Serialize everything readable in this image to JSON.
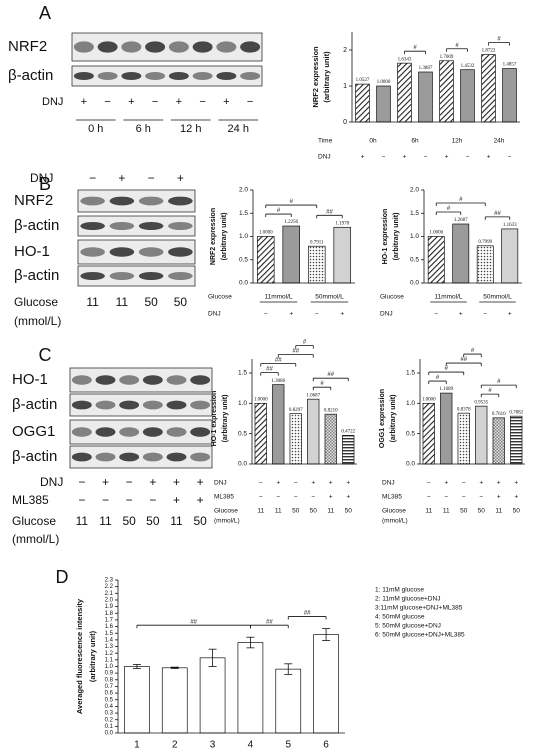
{
  "panels": [
    {
      "label": "A",
      "bands": [
        "NRF2",
        "β-actin"
      ],
      "lane_rows": [
        {
          "name": "DNJ",
          "labels": [
            "+",
            "−",
            "+",
            "−",
            "+",
            "−",
            "+",
            "−"
          ]
        }
      ],
      "groups": [
        "0 h",
        "6 h",
        "12 h",
        "24 h"
      ]
    },
    {
      "label": "B",
      "bands": [
        "NRF2",
        "β-actin",
        "HO-1",
        "β-actin"
      ],
      "lane_rows": [
        {
          "name": "DNJ",
          "labels": [
            "−",
            "+",
            "−",
            "+"
          ]
        },
        {
          "name": "Glucose",
          "unit": "(mmol/L)",
          "labels": [
            "11",
            "11",
            "50",
            "50"
          ]
        }
      ]
    },
    {
      "label": "C",
      "bands": [
        "HO-1",
        "β-actin",
        "OGG1",
        "β-actin"
      ],
      "lane_rows": [
        {
          "name": "DNJ",
          "labels": [
            "−",
            "+",
            "−",
            "+",
            "+",
            "+"
          ]
        },
        {
          "name": "ML385",
          "labels": [
            "−",
            "−",
            "−",
            "−",
            "+",
            "+"
          ]
        },
        {
          "name": "Glucose",
          "unit": "(mmol/L)",
          "labels": [
            "11",
            "11",
            "50",
            "50",
            "11",
            "50"
          ]
        }
      ]
    },
    {
      "label": "D"
    }
  ],
  "chart_data": [
    {
      "type": "bar",
      "ylabel": [
        "NRF2 expression",
        "(arbitrary unit)"
      ],
      "values": [
        1.0527,
        1.0,
        1.6343,
        1.3887,
        1.7009,
        1.4532,
        1.8722,
        1.4857
      ],
      "value_labels": [
        "1.0527",
        "1.0000",
        "1.6343",
        "1.3887",
        "1.7009",
        "1.4532",
        "1.8722",
        "1.4857"
      ],
      "ylim": [
        0,
        2.5
      ],
      "yticks": [
        0,
        1,
        2
      ],
      "bar_styles": [
        "hatch",
        "gray",
        "hatch",
        "gray",
        "hatch",
        "gray",
        "hatch",
        "gray"
      ],
      "groups": {
        "name": "Time",
        "labels": [
          "0h",
          "6h",
          "12h",
          "24h"
        ]
      },
      "rows": [
        {
          "name": "DNJ",
          "labels": [
            "+",
            "−",
            "+",
            "−",
            "+",
            "−",
            "+",
            "−"
          ]
        }
      ],
      "comparisons": [
        {
          "label": "#",
          "bars": [
            2,
            3
          ]
        },
        {
          "label": "#",
          "bars": [
            4,
            5
          ]
        },
        {
          "label": "#",
          "bars": [
            6,
            7
          ]
        }
      ]
    },
    {
      "type": "bar",
      "ylabel": [
        "NRF2 expression",
        "(arbitrary unit)"
      ],
      "values": [
        1.0,
        1.225,
        0.7911,
        1.1978
      ],
      "value_labels": [
        "1.0000",
        "1.2250",
        "0.7911",
        "1.1978"
      ],
      "ylim": [
        0,
        2
      ],
      "yticks": [
        {
          "value": 0,
          "label": "0.0"
        },
        0.5,
        {
          "value": 1,
          "label": "1.0"
        },
        1.5,
        {
          "value": 2,
          "label": "2.0"
        }
      ],
      "bar_styles": [
        "hatch",
        "gray",
        "dots",
        "light"
      ],
      "groups": {
        "name": "Glucose",
        "labels": [
          "11mmol/L",
          "50mmol/L"
        ]
      },
      "rows": [
        {
          "name": "DNJ",
          "labels": [
            "−",
            "+",
            "−",
            "+"
          ]
        }
      ],
      "comparisons": [
        {
          "label": "#",
          "bars": [
            0,
            1
          ]
        },
        {
          "label": "#",
          "bars": [
            0,
            2
          ]
        },
        {
          "label": "##",
          "bars": [
            2,
            3
          ]
        }
      ]
    },
    {
      "type": "bar",
      "ylabel": [
        "HO-1 expression",
        "(arbitrary unit)"
      ],
      "values": [
        1.0,
        1.2687,
        0.7999,
        1.1633
      ],
      "value_labels": [
        "1.0000",
        "1.2687",
        "0.7999",
        "1.1633"
      ],
      "ylim": [
        0,
        2
      ],
      "yticks": [
        {
          "value": 0,
          "label": "0.0"
        },
        0.5,
        {
          "value": 1,
          "label": "1.0"
        },
        1.5,
        {
          "value": 2,
          "label": "2.0"
        }
      ],
      "bar_styles": [
        "hatch",
        "gray",
        "dots",
        "light"
      ],
      "groups": {
        "name": "Glucose",
        "labels": [
          "11mmol/L",
          "50mmol/L"
        ]
      },
      "rows": [
        {
          "name": "DNJ",
          "labels": [
            "−",
            "+",
            "−",
            "+"
          ]
        }
      ],
      "comparisons": [
        {
          "label": "#",
          "bars": [
            0,
            1
          ]
        },
        {
          "label": "#",
          "bars": [
            0,
            2
          ]
        },
        {
          "label": "##",
          "bars": [
            2,
            3
          ]
        }
      ]
    },
    {
      "type": "bar",
      "ylabel": [
        "HO-1 expression",
        "(arbitrary unit)"
      ],
      "values": [
        1.0,
        1.3086,
        0.8297,
        1.0687,
        0.821,
        0.4722
      ],
      "value_labels": [
        "1.0000",
        "1.3086",
        "0.8297",
        "1.0687",
        "0.8210",
        "0.4722"
      ],
      "ylim": [
        0,
        1.5
      ],
      "yticks": [
        {
          "value": 0,
          "label": "0.0"
        },
        0.5,
        {
          "value": 1,
          "label": "1.0"
        },
        1.5
      ],
      "bar_styles": [
        "hatch",
        "gray",
        "dots",
        "light",
        "cross",
        "hstripe"
      ],
      "rows": [
        {
          "name": "DNJ",
          "labels": [
            "−",
            "+",
            "−",
            "+",
            "+",
            "+"
          ]
        },
        {
          "name": "ML385",
          "labels": [
            "−",
            "−",
            "−",
            "−",
            "+",
            "+"
          ]
        },
        {
          "name": "Glucose",
          "unit": "(mmol/L)",
          "labels": [
            "11",
            "11",
            "50",
            "50",
            "11",
            "50"
          ]
        }
      ],
      "comparisons": [
        {
          "label": "##",
          "bars": [
            0,
            1
          ]
        },
        {
          "label": "##",
          "bars": [
            0,
            2
          ]
        },
        {
          "label": "##",
          "bars": [
            1,
            3
          ]
        },
        {
          "label": "#",
          "bars": [
            2,
            3
          ]
        },
        {
          "label": "#",
          "bars": [
            3,
            4
          ]
        },
        {
          "label": "##",
          "bars": [
            3,
            5
          ]
        }
      ]
    },
    {
      "type": "bar",
      "ylabel": [
        "OGG1 expression",
        "(arbitrary unit)"
      ],
      "values": [
        1.0,
        1.1689,
        0.8378,
        0.9535,
        0.761,
        0.7882
      ],
      "value_labels": [
        "1.0000",
        "1.1689",
        "0.8378",
        "0.9535",
        "0.7610",
        "0.7882"
      ],
      "ylim": [
        0,
        1.5
      ],
      "yticks": [
        {
          "value": 0,
          "label": "0.0"
        },
        0.5,
        {
          "value": 1,
          "label": "1.0"
        },
        1.5
      ],
      "bar_styles": [
        "hatch",
        "gray",
        "dots",
        "light",
        "cross",
        "hstripe"
      ],
      "rows": [
        {
          "name": "DNJ",
          "labels": [
            "−",
            "+",
            "−",
            "+",
            "+",
            "+"
          ]
        },
        {
          "name": "ML385",
          "labels": [
            "−",
            "−",
            "−",
            "−",
            "+",
            "+"
          ]
        },
        {
          "name": "Glucose",
          "unit": "(mmol/L)",
          "labels": [
            "11",
            "11",
            "50",
            "50",
            "11",
            "50"
          ]
        }
      ],
      "comparisons": [
        {
          "label": "#",
          "bars": [
            0,
            1
          ]
        },
        {
          "label": "#",
          "bars": [
            0,
            2
          ]
        },
        {
          "label": "##",
          "bars": [
            1,
            3
          ]
        },
        {
          "label": "#",
          "bars": [
            2,
            3
          ]
        },
        {
          "label": "#",
          "bars": [
            3,
            4
          ]
        },
        {
          "label": "#",
          "bars": [
            3,
            5
          ]
        }
      ]
    },
    {
      "type": "bar",
      "ylabel": [
        "Averaged fluorescence intensity",
        "(arbitrary unit)"
      ],
      "categories": [
        "1",
        "2",
        "3",
        "4",
        "5",
        "6"
      ],
      "values": [
        1.0,
        0.98,
        1.13,
        1.36,
        0.96,
        1.48
      ],
      "errors": [
        0.03,
        0.01,
        0.13,
        0.08,
        0.08,
        0.09
      ],
      "ylim": [
        0,
        2.3
      ],
      "yticks": [
        {
          "value": 0,
          "label": "0.0"
        },
        0.1,
        0.2,
        0.3,
        0.4,
        0.5,
        0.6,
        0.7,
        0.8,
        0.9,
        {
          "value": 1,
          "label": "1.0"
        },
        1.1,
        1.2,
        1.3,
        1.4,
        1.5,
        1.6,
        1.7,
        1.8,
        1.9,
        {
          "value": 2,
          "label": "2.0"
        },
        2.1,
        2.2,
        2.3
      ],
      "bar_styles": [
        "white",
        "white",
        "white",
        "white",
        "white",
        "white"
      ],
      "annotations": [
        "1: 11mM glucose",
        "2: 11mM glucose+DNJ",
        "3:11mM glucose+DNJ+ML385",
        "4: 50mM glucose",
        "5: 50mM glucose+DNJ",
        "6: 50mM glucose+DNJ+ML385"
      ],
      "comparisons": [
        {
          "label": "##",
          "bars": [
            0,
            3
          ]
        },
        {
          "label": "##",
          "bars": [
            3,
            4
          ]
        },
        {
          "label": "##",
          "bars": [
            4,
            5
          ]
        }
      ]
    }
  ]
}
